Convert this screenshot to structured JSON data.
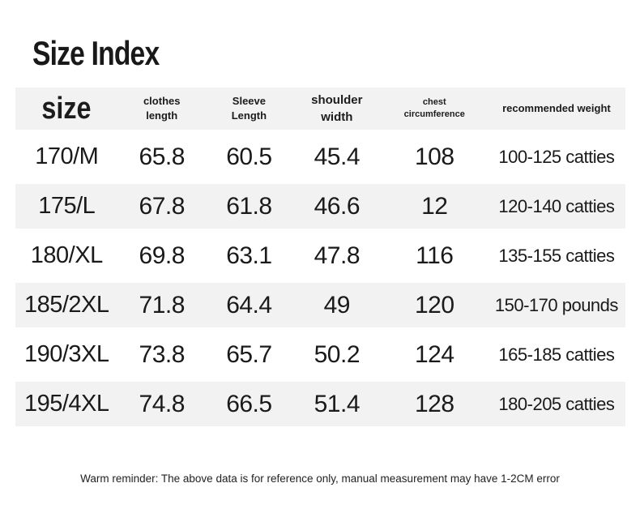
{
  "page": {
    "title": "Size Index",
    "footer_note": "Warm reminder: The above data is for reference only, manual measurement may have 1-2CM error"
  },
  "display": {
    "headers": [
      {
        "label": "size"
      },
      {
        "label": "clothes\nlength"
      },
      {
        "label": "Sleeve\nLength"
      },
      {
        "label": "shoulder\nwidth"
      },
      {
        "label": "chest\ncircumference"
      },
      {
        "label": "recommended weight"
      }
    ]
  },
  "colors": {
    "background": "#ffffff",
    "stripe": "#f2f2f2",
    "text": "#1a1a1a"
  },
  "chart_data": {
    "type": "table",
    "title": "Size Index",
    "columns": [
      "size",
      "clothes length",
      "Sleeve Length",
      "shoulder width",
      "chest circumference",
      "recommended weight"
    ],
    "rows": [
      [
        "170/M",
        "65.8",
        "60.5",
        "45.4",
        "108",
        "100-125 catties"
      ],
      [
        "175/L",
        "67.8",
        "61.8",
        "46.6",
        "12",
        "120-140 catties"
      ],
      [
        "180/XL",
        "69.8",
        "63.1",
        "47.8",
        "116",
        "135-155 catties"
      ],
      [
        "185/2XL",
        "71.8",
        "64.4",
        "49",
        "120",
        "150-170 pounds"
      ],
      [
        "190/3XL",
        "73.8",
        "65.7",
        "50.2",
        "124",
        "165-185 catties"
      ],
      [
        "195/4XL",
        "74.8",
        "66.5",
        "51.4",
        "128",
        "180-205 catties"
      ]
    ],
    "note": "Warm reminder: The above data is for reference only, manual measurement may have 1-2CM error",
    "layout": {
      "striped": true,
      "stripe_color": "#f2f2f2",
      "header_background": "#f2f2f2"
    }
  }
}
